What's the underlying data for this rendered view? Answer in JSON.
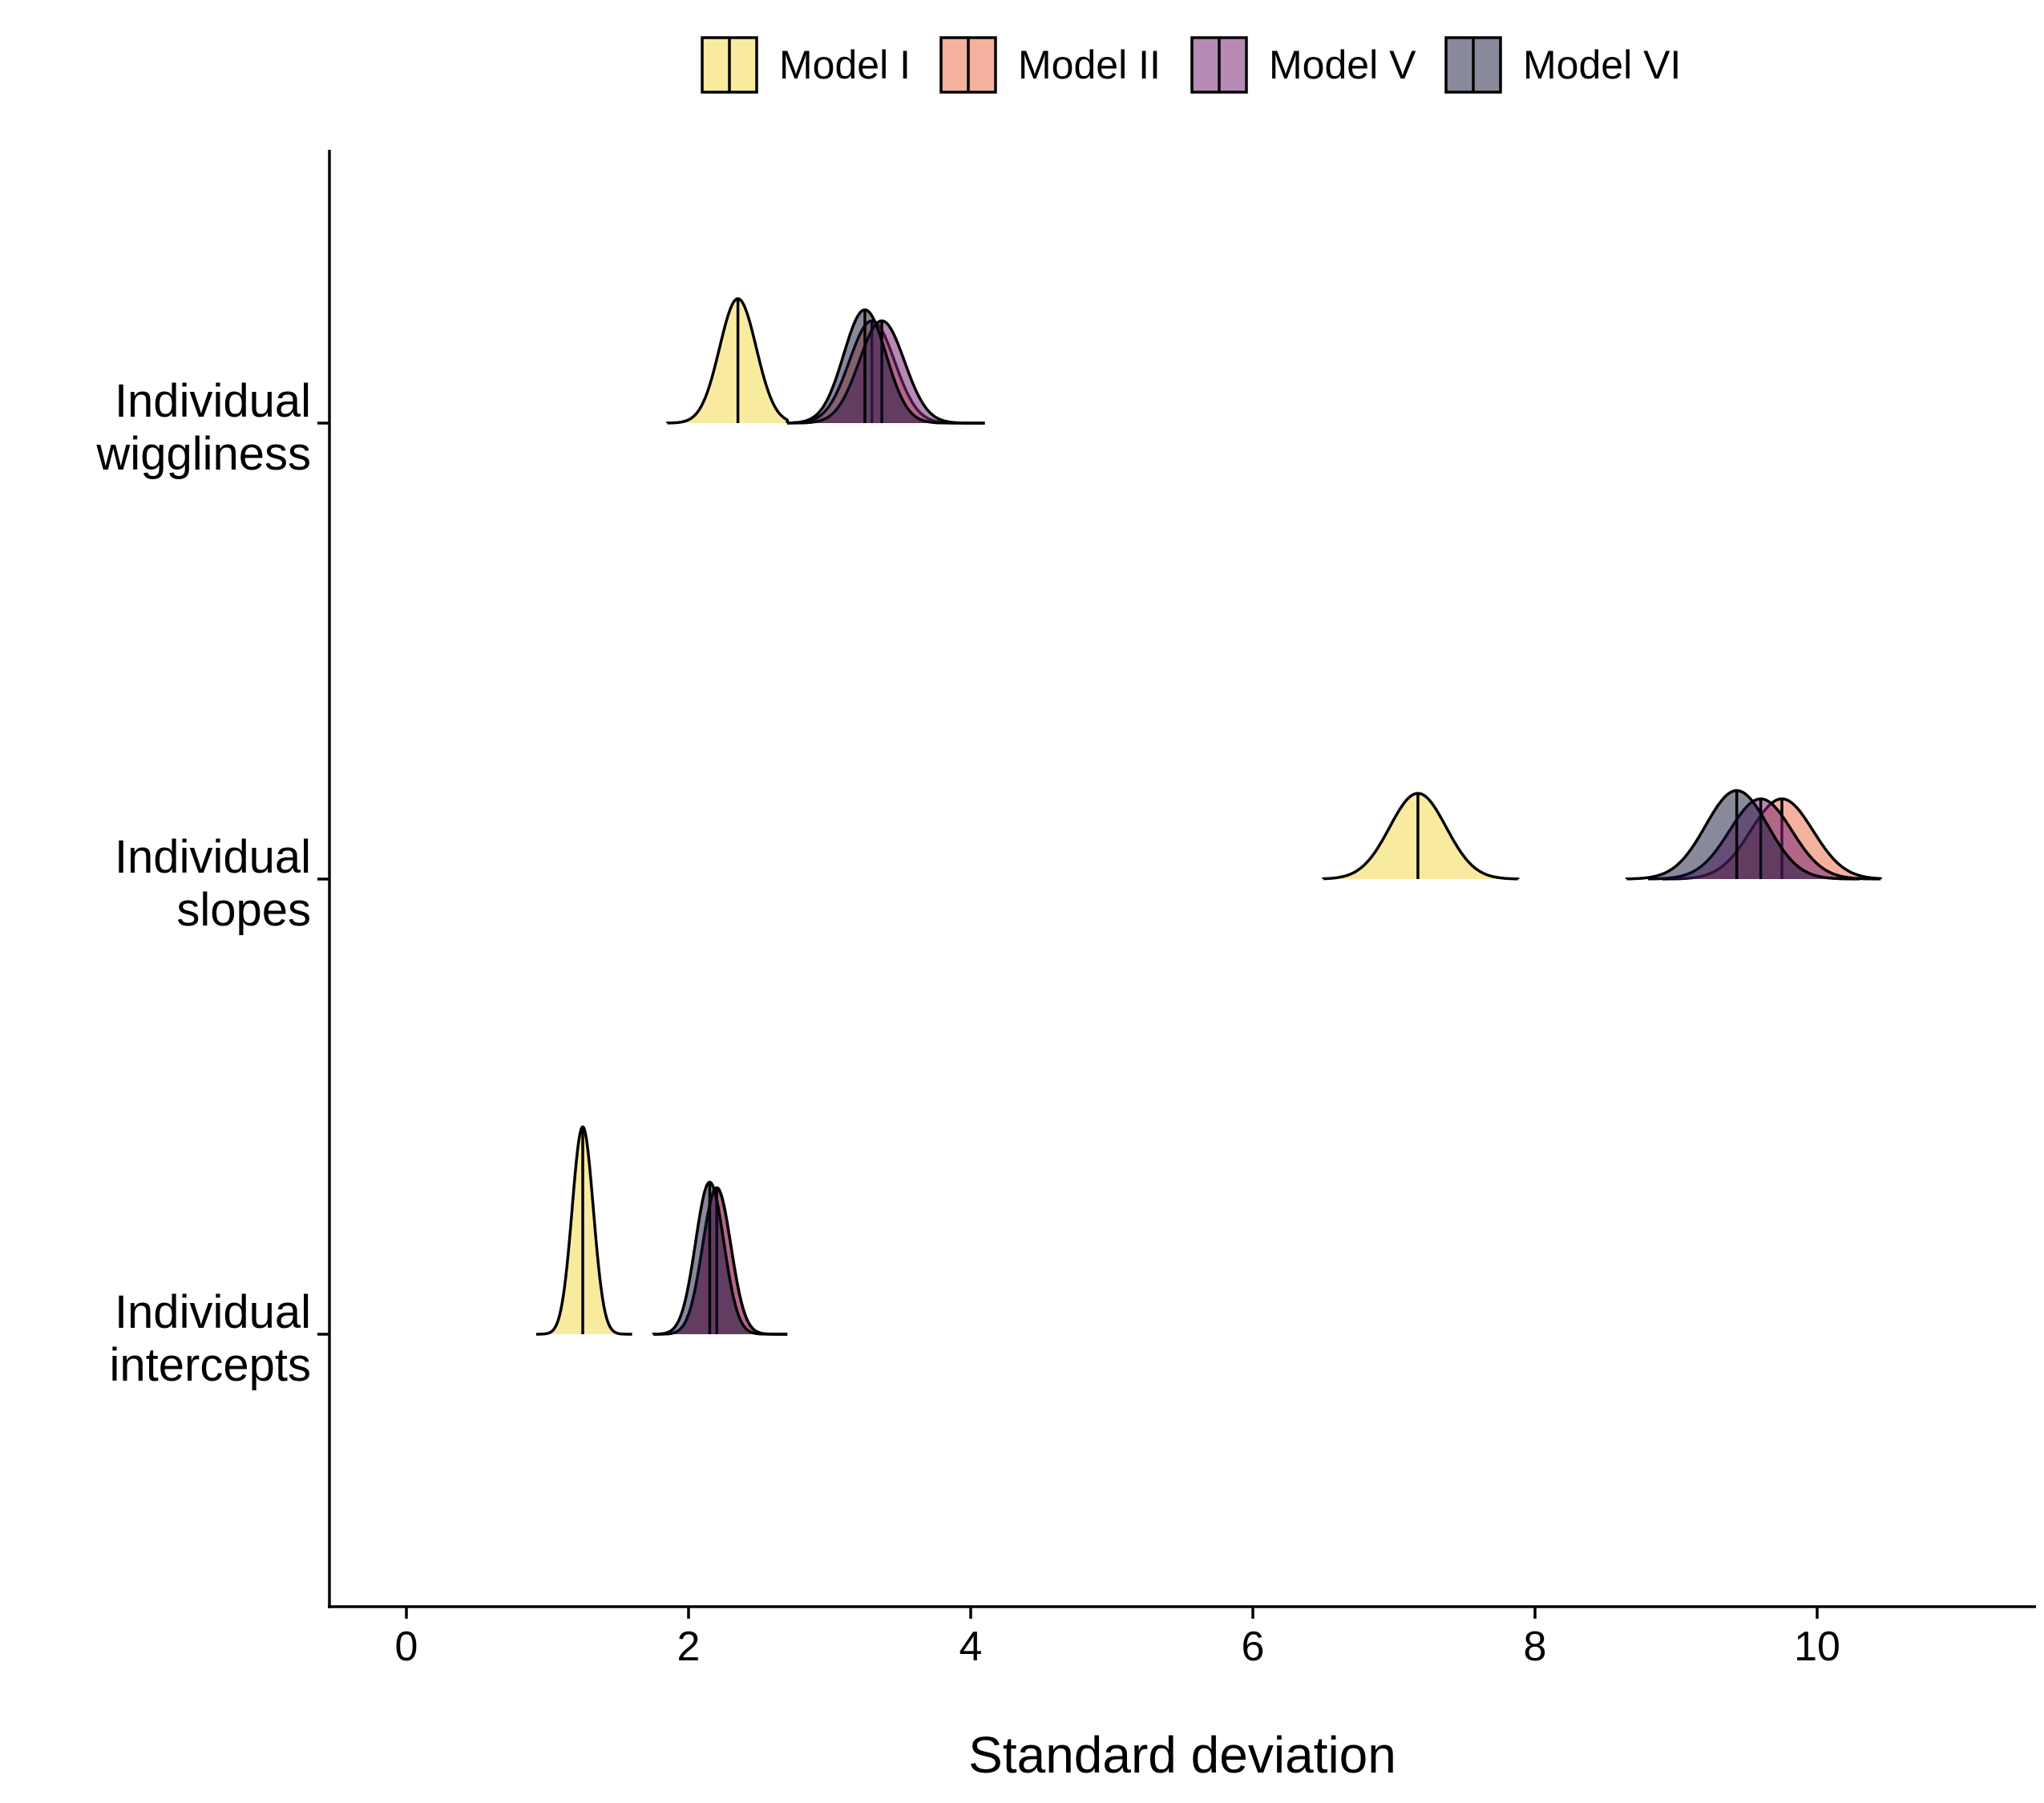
{
  "chart_data": {
    "type": "ridgeline",
    "title": "",
    "xlabel": "Standard deviation",
    "ylabel": "",
    "xlim": [
      -0.55,
      11.5
    ],
    "xticks": [
      "0",
      "2",
      "4",
      "6",
      "8",
      "10"
    ],
    "xtick_values": [
      0,
      2,
      4,
      6,
      8,
      10
    ],
    "legend_placement": "top",
    "grid": false,
    "categories": [
      {
        "label_lines": [
          "Individual",
          "intercepts"
        ]
      },
      {
        "label_lines": [
          "Individual",
          "slopes"
        ]
      },
      {
        "label_lines": [
          "Individual",
          "wiggliness"
        ]
      }
    ],
    "series": [
      {
        "name": "Model I",
        "color": "#F2DA50",
        "opacity": 0.55,
        "distributions": [
          {
            "category": 0,
            "median": 1.25,
            "sd": 0.075,
            "min": 0.92,
            "max": 1.6,
            "peak": 0.75
          },
          {
            "category": 1,
            "median": 7.17,
            "sd": 0.2,
            "min": 6.5,
            "max": 7.88,
            "peak": 0.31
          },
          {
            "category": 2,
            "median": 2.35,
            "sd": 0.13,
            "min": 1.85,
            "max": 2.7,
            "peak": 0.45
          }
        ]
      },
      {
        "name": "Model II",
        "color": "#E8643E",
        "opacity": 0.5,
        "distributions": [
          {
            "category": 0,
            "median": 2.2,
            "sd": 0.1,
            "min": 1.75,
            "max": 2.7,
            "peak": 0.53
          },
          {
            "category": 1,
            "median": 9.75,
            "sd": 0.22,
            "min": 8.9,
            "max": 10.45,
            "peak": 0.29
          },
          {
            "category": 2,
            "median": 3.3,
            "sd": 0.16,
            "min": 2.7,
            "max": 4.1,
            "peak": 0.37
          }
        ]
      },
      {
        "name": "Model V",
        "color": "#7B2A79",
        "opacity": 0.55,
        "distributions": [
          {
            "category": 0,
            "median": 2.2,
            "sd": 0.1,
            "min": 1.75,
            "max": 2.7,
            "peak": 0.53
          },
          {
            "category": 1,
            "median": 9.6,
            "sd": 0.22,
            "min": 8.8,
            "max": 10.45,
            "peak": 0.29
          },
          {
            "category": 2,
            "median": 3.37,
            "sd": 0.16,
            "min": 2.7,
            "max": 4.1,
            "peak": 0.37
          }
        ]
      },
      {
        "name": "Model VI",
        "color": "#14143A",
        "opacity": 0.5,
        "distributions": [
          {
            "category": 0,
            "median": 2.15,
            "sd": 0.1,
            "min": 1.75,
            "max": 2.7,
            "peak": 0.55
          },
          {
            "category": 1,
            "median": 9.43,
            "sd": 0.22,
            "min": 8.65,
            "max": 10.3,
            "peak": 0.32
          },
          {
            "category": 2,
            "median": 3.25,
            "sd": 0.15,
            "min": 2.7,
            "max": 4.1,
            "peak": 0.41
          }
        ]
      }
    ]
  }
}
